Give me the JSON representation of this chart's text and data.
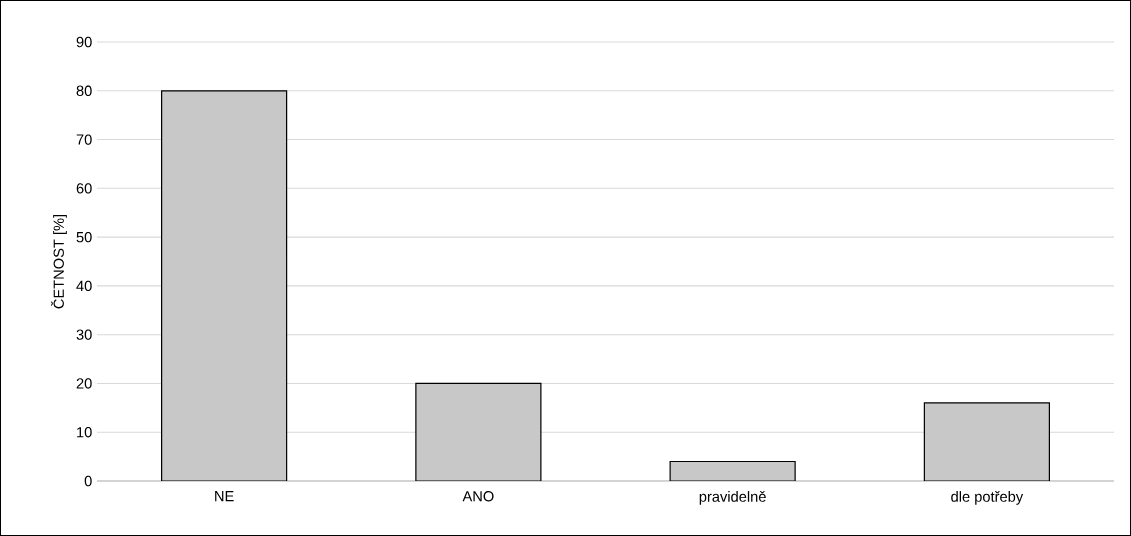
{
  "chart_data": {
    "type": "bar",
    "ylabel": "ČETNOST [%]",
    "categories": [
      "NE",
      "ANO",
      "pravidelně",
      "dle potřeby"
    ],
    "values": [
      80,
      20,
      4,
      16
    ],
    "color": "#c8c8c8",
    "ylim": [
      0,
      90
    ],
    "yticks": [
      0,
      10,
      20,
      30,
      40,
      50,
      60,
      70,
      80,
      90
    ],
    "grid": "y"
  }
}
